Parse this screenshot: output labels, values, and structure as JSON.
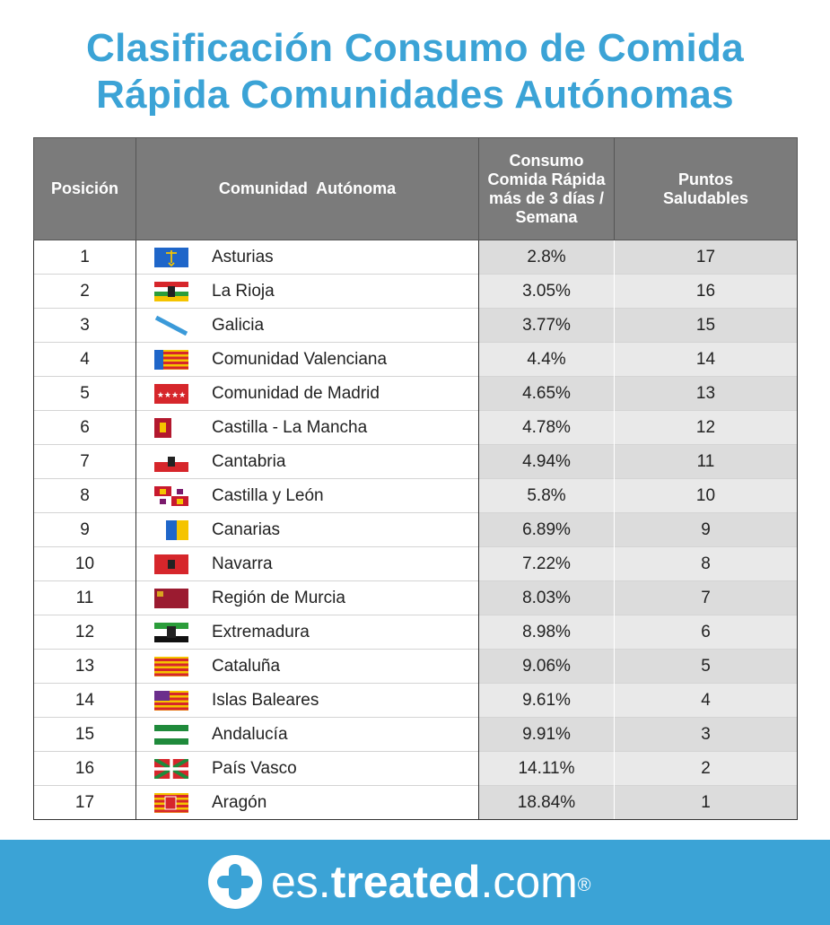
{
  "title": {
    "line1": "Clasificación Consumo de Comida",
    "line2": "Rápida Comunidades Autónomas"
  },
  "table": {
    "headers": {
      "position": "Posición",
      "community": "Comunidad  Autónoma",
      "consumption": "Consumo Comida Rápida más de 3 días / Semana",
      "points": "Puntos Saludables"
    },
    "rows": [
      {
        "position": "1",
        "community": "Asturias",
        "consumption": "2.8%",
        "points": "17",
        "flag": "asturias-flag-icon"
      },
      {
        "position": "2",
        "community": "La Rioja",
        "consumption": "3.05%",
        "points": "16",
        "flag": "la-rioja-flag-icon"
      },
      {
        "position": "3",
        "community": "Galicia",
        "consumption": "3.77%",
        "points": "15",
        "flag": "galicia-flag-icon"
      },
      {
        "position": "4",
        "community": "Comunidad Valenciana",
        "consumption": "4.4%",
        "points": "14",
        "flag": "valencia-flag-icon"
      },
      {
        "position": "5",
        "community": "Comunidad de Madrid",
        "consumption": "4.65%",
        "points": "13",
        "flag": "madrid-flag-icon"
      },
      {
        "position": "6",
        "community": "Castilla - La Mancha",
        "consumption": "4.78%",
        "points": "12",
        "flag": "castilla-la-mancha-flag-icon"
      },
      {
        "position": "7",
        "community": "Cantabria",
        "consumption": "4.94%",
        "points": "11",
        "flag": "cantabria-flag-icon"
      },
      {
        "position": "8",
        "community": "Castilla y León",
        "consumption": "5.8%",
        "points": "10",
        "flag": "castilla-y-leon-flag-icon"
      },
      {
        "position": "9",
        "community": "Canarias",
        "consumption": "6.89%",
        "points": "9",
        "flag": "canarias-flag-icon"
      },
      {
        "position": "10",
        "community": "Navarra",
        "consumption": "7.22%",
        "points": "8",
        "flag": "navarra-flag-icon"
      },
      {
        "position": "11",
        "community": "Región de Murcia",
        "consumption": "8.03%",
        "points": "7",
        "flag": "murcia-flag-icon"
      },
      {
        "position": "12",
        "community": "Extremadura",
        "consumption": "8.98%",
        "points": "6",
        "flag": "extremadura-flag-icon"
      },
      {
        "position": "13",
        "community": "Cataluña",
        "consumption": "9.06%",
        "points": "5",
        "flag": "cataluna-flag-icon"
      },
      {
        "position": "14",
        "community": "Islas Baleares",
        "consumption": "9.61%",
        "points": "4",
        "flag": "baleares-flag-icon"
      },
      {
        "position": "15",
        "community": "Andalucía",
        "consumption": "9.91%",
        "points": "3",
        "flag": "andalucia-flag-icon"
      },
      {
        "position": "16",
        "community": "País Vasco",
        "consumption": "14.11%",
        "points": "2",
        "flag": "pais-vasco-flag-icon"
      },
      {
        "position": "17",
        "community": "Aragón",
        "consumption": "18.84%",
        "points": "1",
        "flag": "aragon-flag-icon"
      }
    ]
  },
  "footer": {
    "brand_prefix": "es.",
    "brand_bold": "treated",
    "brand_suffix": ".com",
    "registered": "®",
    "logo_icon": "plus-circle-logo-icon"
  },
  "colors": {
    "accent": "#3ba3d6",
    "header_bg": "#7b7b7b",
    "shaded_cell": "#e9e9e9"
  }
}
